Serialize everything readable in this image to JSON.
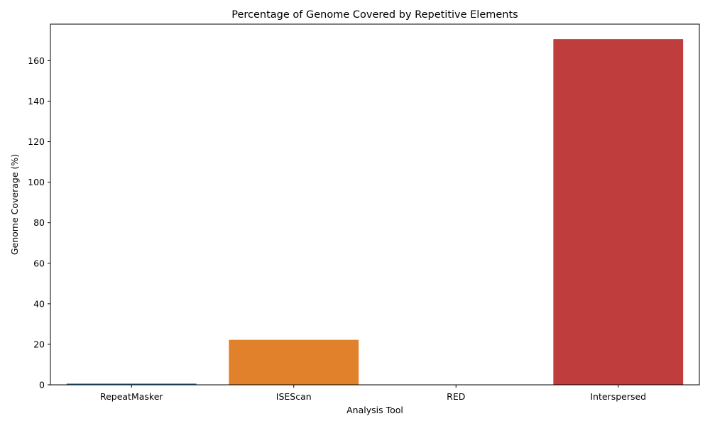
{
  "chart_data": {
    "type": "bar",
    "title": "Percentage of Genome Covered by Repetitive Elements",
    "xlabel": "Analysis Tool",
    "ylabel": "Genome Coverage (%)",
    "categories": [
      "RepeatMasker",
      "ISEScan",
      "RED",
      "Interspersed"
    ],
    "values": [
      0.6,
      22.2,
      0,
      170.6
    ],
    "colors": [
      "#3274a1",
      "#e1812c",
      "#3a923a",
      "#c03d3e"
    ],
    "ylim": [
      0,
      178
    ],
    "yticks": [
      0,
      20,
      40,
      60,
      80,
      100,
      120,
      140,
      160
    ],
    "grid": false,
    "legend": "none"
  }
}
